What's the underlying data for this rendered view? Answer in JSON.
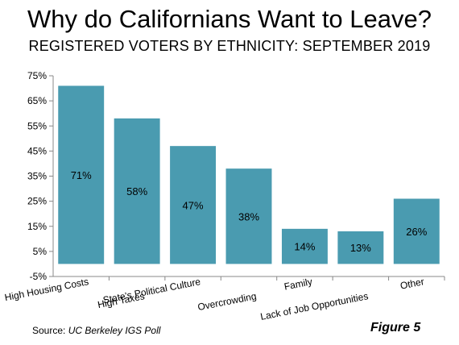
{
  "header": {
    "title": "Why do Californians Want to Leave?",
    "subtitle": "REGISTERED VOTERS BY ETHNICITY: SEPTEMBER 2019"
  },
  "footer": {
    "source_prefix": "Source: ",
    "source_name": "UC Berkeley IGS Poll",
    "figure_label": "Figure 5"
  },
  "chart_data": {
    "type": "bar",
    "title": "Why do Californians Want to Leave?",
    "subtitle": "REGISTERED VOTERS BY ETHNICITY: SEPTEMBER 2019",
    "categories": [
      "High Housing Costs",
      "High Taxes",
      "State's Political Culture",
      "Overcrowding",
      "Family",
      "Lack of Job Opportunities",
      "Other"
    ],
    "values": [
      71,
      58,
      47,
      38,
      14,
      13,
      26
    ],
    "data_labels": [
      "71%",
      "58%",
      "47%",
      "38%",
      "14%",
      "13%",
      "26%"
    ],
    "ylim": [
      -5,
      75
    ],
    "yticks": [
      75,
      65,
      55,
      45,
      35,
      25,
      15,
      5,
      -5
    ],
    "ytick_labels": [
      "75%",
      "65%",
      "55%",
      "45%",
      "35%",
      "25%",
      "15%",
      "5%",
      "-5%"
    ],
    "xlabel": "",
    "ylabel": "",
    "grid": false,
    "legend": "none",
    "bar_color": "#4a9bb0"
  }
}
